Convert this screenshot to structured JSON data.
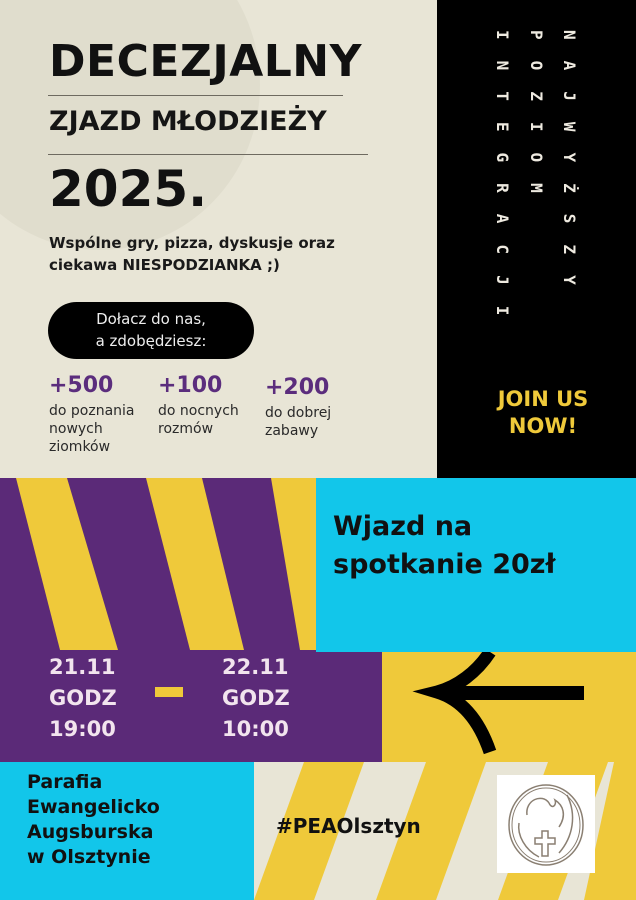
{
  "header": {
    "title": "DECEZJALNY",
    "subtitle": "ZJAZD MŁODZIEŻY",
    "year": "2025.",
    "description_line1": "Wspólne gry, pizza, dyskusje oraz",
    "description_line2": "ciekawa NIESPODZIANKA ;)"
  },
  "pill": {
    "line1": "Dołacz do nas,",
    "line2": "a zdobędziesz:"
  },
  "stats": [
    {
      "value": "+500",
      "label_lines": [
        "do poznania",
        "nowych",
        "ziomków"
      ]
    },
    {
      "value": "+100",
      "label_lines": [
        "do nocnych",
        "rozmów"
      ]
    },
    {
      "value": "+200",
      "label_lines": [
        "do dobrej",
        "zabawy"
      ]
    }
  ],
  "vertical_text": [
    "NAJWYŻSZY",
    "POZIOM",
    "INTEGRACJI"
  ],
  "join": {
    "line1": "JOIN US",
    "line2": "NOW!"
  },
  "entry": {
    "line1": "Wjazd na",
    "line2": "spotkanie 20zł"
  },
  "dates": {
    "start": {
      "date": "21.11",
      "label": "GODZ",
      "time": "19:00"
    },
    "end": {
      "date": "22.11",
      "label": "GODZ",
      "time": "10:00"
    }
  },
  "arrow_icon": "arrow-left-icon",
  "organizer": {
    "lines": [
      "Parafia",
      "Ewangelicko",
      "Augsburska",
      "w Olsztynie"
    ]
  },
  "hashtag": "#PEAOlsztyn",
  "colors": {
    "purple": "#5b2a78",
    "yellow": "#efc93a",
    "cyan": "#12c6ea",
    "cream": "#e8e5d6",
    "black": "#000000"
  }
}
